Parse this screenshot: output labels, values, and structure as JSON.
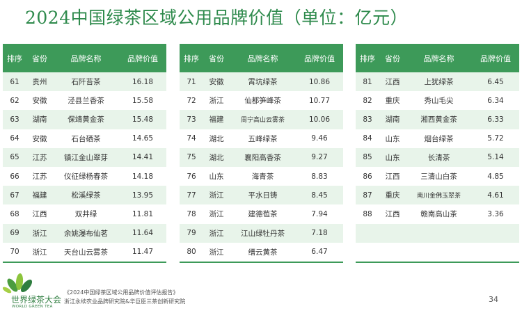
{
  "title": "2024中国绿茶区域公用品牌价值（单位：亿元）",
  "headers": [
    "排序",
    "省份",
    "品牌名称",
    "品牌价值"
  ],
  "tables": [
    {
      "rows": [
        {
          "rank": "61",
          "province": "贵州",
          "brand": "石阡苔茶",
          "value": "16.18"
        },
        {
          "rank": "62",
          "province": "安徽",
          "brand": "泾县兰香茶",
          "value": "15.58"
        },
        {
          "rank": "63",
          "province": "湖南",
          "brand": "保靖黄金茶",
          "value": "15.48"
        },
        {
          "rank": "64",
          "province": "安徽",
          "brand": "石台硒茶",
          "value": "14.65"
        },
        {
          "rank": "65",
          "province": "江苏",
          "brand": "镇江金山翠芽",
          "value": "14.41"
        },
        {
          "rank": "66",
          "province": "江苏",
          "brand": "仪征绿杨春茶",
          "value": "14.18"
        },
        {
          "rank": "67",
          "province": "福建",
          "brand": "松溪绿茶",
          "value": "13.95"
        },
        {
          "rank": "68",
          "province": "江西",
          "brand": "双井绿",
          "value": "11.81"
        },
        {
          "rank": "69",
          "province": "浙江",
          "brand": "余姚瀑布仙茗",
          "value": "11.64"
        },
        {
          "rank": "70",
          "province": "浙江",
          "brand": "天台山云雾茶",
          "value": "11.47"
        }
      ]
    },
    {
      "rows": [
        {
          "rank": "71",
          "province": "安徽",
          "brand": "霄坑绿茶",
          "value": "10.86"
        },
        {
          "rank": "72",
          "province": "浙江",
          "brand": "仙都笋峰茶",
          "value": "10.77"
        },
        {
          "rank": "73",
          "province": "福建",
          "brand": "周宁高山云雾茶",
          "value": "10.06"
        },
        {
          "rank": "74",
          "province": "湖北",
          "brand": "五峰绿茶",
          "value": "9.46"
        },
        {
          "rank": "75",
          "province": "湖北",
          "brand": "襄阳高香茶",
          "value": "9.27"
        },
        {
          "rank": "76",
          "province": "山东",
          "brand": "海青茶",
          "value": "8.83"
        },
        {
          "rank": "77",
          "province": "浙江",
          "brand": "平水日铸",
          "value": "8.45"
        },
        {
          "rank": "78",
          "province": "浙江",
          "brand": "建德苞茶",
          "value": "7.94"
        },
        {
          "rank": "79",
          "province": "浙江",
          "brand": "江山绿牡丹茶",
          "value": "7.18"
        },
        {
          "rank": "80",
          "province": "浙江",
          "brand": "缙云黄茶",
          "value": "6.47"
        }
      ]
    },
    {
      "rows": [
        {
          "rank": "81",
          "province": "江西",
          "brand": "上犹绿茶",
          "value": "6.45"
        },
        {
          "rank": "82",
          "province": "重庆",
          "brand": "秀山毛尖",
          "value": "6.34"
        },
        {
          "rank": "83",
          "province": "湖南",
          "brand": "湘西黄金茶",
          "value": "6.33"
        },
        {
          "rank": "84",
          "province": "山东",
          "brand": "烟台绿茶",
          "value": "5.72"
        },
        {
          "rank": "85",
          "province": "山东",
          "brand": "长清茶",
          "value": "5.14"
        },
        {
          "rank": "86",
          "province": "江西",
          "brand": "三清山白茶",
          "value": "4.85"
        },
        {
          "rank": "87",
          "province": "重庆",
          "brand": "南川金佛玉翠茶",
          "value": "4.61"
        },
        {
          "rank": "88",
          "province": "江西",
          "brand": "赣南高山茶",
          "value": "3.36"
        },
        {
          "rank": "",
          "province": "",
          "brand": "",
          "value": ""
        },
        {
          "rank": "",
          "province": "",
          "brand": "",
          "value": ""
        }
      ]
    }
  ],
  "logo": {
    "name_cn": "世界绿茶大会",
    "name_en": "WORLD GREEN TEA"
  },
  "source": {
    "line1": "《2024中国绿茶区域公用品牌价值评估报告》",
    "line2": "浙江永续农业品牌研究院&华巨臣三茶创新研究院"
  },
  "page_number": "34",
  "colors": {
    "header_green": "#3d9a59",
    "stripe_green": "#e8f4ea",
    "title_green": "#2e8a4c"
  }
}
